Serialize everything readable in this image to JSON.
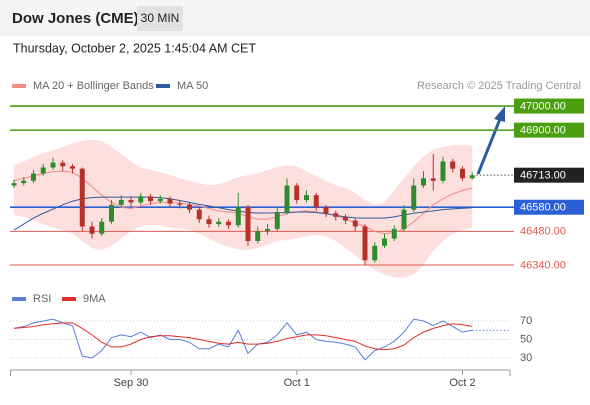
{
  "header": {
    "title": "Dow Jones (CME)",
    "timeframe": "30 MIN",
    "datetime": "Thursday, October 2, 2025 1:45:04 AM CET"
  },
  "chart_data": [
    {
      "type": "candlestick",
      "credit": "Research © 2025 Trading Central",
      "ylim": [
        46280,
        47050
      ],
      "up_color": "#2e8b2e",
      "down_color": "#b5322b",
      "band_color": "#fde0de",
      "candles": {
        "open": [
          46670,
          46680,
          46690,
          46720,
          46745,
          46765,
          46750,
          46740,
          46500,
          46470,
          46520,
          46590,
          46610,
          46600,
          46625,
          46605,
          46615,
          46595,
          46590,
          46570,
          46530,
          46510,
          46520,
          46505,
          46580,
          46440,
          46480,
          46490,
          46560,
          46670,
          46610,
          46630,
          46580,
          46555,
          46540,
          46525,
          46500,
          46360,
          46420,
          46450,
          46490,
          46570,
          46670,
          46700,
          46690,
          46770,
          46740,
          46700
        ],
        "high": [
          46695,
          46705,
          46735,
          46760,
          46785,
          46775,
          46760,
          46745,
          46520,
          46535,
          46610,
          46630,
          46625,
          46640,
          46635,
          46630,
          46625,
          46610,
          46600,
          46580,
          46545,
          46535,
          46530,
          46640,
          46590,
          46500,
          46510,
          46580,
          46700,
          46680,
          46650,
          46640,
          46590,
          46565,
          46550,
          46535,
          46510,
          46435,
          46470,
          46505,
          46590,
          46700,
          46730,
          46800,
          46790,
          46780,
          46750,
          46725
        ],
        "low": [
          46660,
          46670,
          46680,
          46710,
          46735,
          46730,
          46720,
          46480,
          46450,
          46460,
          46510,
          46580,
          46585,
          46590,
          46590,
          46595,
          46580,
          46575,
          46555,
          46515,
          46495,
          46500,
          46490,
          46495,
          46420,
          46430,
          46465,
          46480,
          46550,
          46595,
          46600,
          46565,
          46540,
          46525,
          46510,
          46480,
          46340,
          46350,
          46410,
          46440,
          46480,
          46560,
          46660,
          46650,
          46680,
          46725,
          46690,
          46695
        ],
        "close": [
          46680,
          46690,
          46720,
          46745,
          46765,
          46750,
          46740,
          46500,
          46470,
          46520,
          46590,
          46610,
          46600,
          46625,
          46605,
          46615,
          46595,
          46590,
          46570,
          46530,
          46510,
          46520,
          46505,
          46580,
          46440,
          46480,
          46490,
          46560,
          46670,
          46610,
          46630,
          46580,
          46555,
          46540,
          46525,
          46500,
          46360,
          46420,
          46450,
          46490,
          46570,
          46670,
          46700,
          46690,
          46770,
          46740,
          46700,
          46713
        ]
      },
      "series": [
        {
          "name": "MA 20 + Bollinger Bands",
          "color": "#f28b82",
          "values": [
            46690,
            46700,
            46710,
            46720,
            46728,
            46730,
            46725,
            46700,
            46665,
            46630,
            46600,
            46580,
            46575,
            46585,
            46595,
            46600,
            46600,
            46597,
            46592,
            46585,
            46575,
            46565,
            46560,
            46555,
            46540,
            46530,
            46530,
            46540,
            46555,
            46560,
            46565,
            46560,
            46555,
            46545,
            46530,
            46515,
            46500,
            46480,
            46470,
            46475,
            46490,
            46520,
            46555,
            46590,
            46615,
            46635,
            46650,
            46660
          ],
          "upper": [
            46755,
            46770,
            46790,
            46805,
            46815,
            46830,
            46845,
            46855,
            46860,
            46855,
            46830,
            46800,
            46770,
            46745,
            46735,
            46725,
            46715,
            46700,
            46690,
            46680,
            46672,
            46675,
            46690,
            46705,
            46714,
            46720,
            46735,
            46748,
            46755,
            46750,
            46730,
            46710,
            46690,
            46672,
            46660,
            46640,
            46610,
            46589,
            46600,
            46650,
            46700,
            46750,
            46790,
            46820,
            46830,
            46838,
            46840,
            46835
          ],
          "lower": [
            46548,
            46540,
            46525,
            46510,
            46495,
            46485,
            46470,
            46440,
            46410,
            46402,
            46420,
            46450,
            46480,
            46500,
            46505,
            46505,
            46495,
            46490,
            46485,
            46470,
            46450,
            46430,
            46415,
            46405,
            46402,
            46410,
            46425,
            46440,
            46444,
            46450,
            46460,
            46465,
            46460,
            46440,
            46410,
            46380,
            46345,
            46320,
            46300,
            46290,
            46286,
            46300,
            46340,
            46400,
            46440,
            46470,
            46485,
            46495
          ]
        },
        {
          "name": "MA 50",
          "color": "#2b5aa0",
          "values": [
            46485,
            46510,
            46535,
            46555,
            46572,
            46590,
            46605,
            46615,
            46620,
            46622,
            46622,
            46622,
            46622,
            46622,
            46622,
            46620,
            46615,
            46608,
            46600,
            46592,
            46585,
            46578,
            46570,
            46564,
            46558,
            46556,
            46556,
            46557,
            46558,
            46560,
            46560,
            46558,
            46553,
            46546,
            46540,
            46536,
            46535,
            46535,
            46535,
            46540,
            46548,
            46555,
            46560,
            46565,
            46570,
            46573,
            46576,
            46578
          ]
        }
      ],
      "levels": {
        "values": [
          47000,
          46900,
          46713,
          46580,
          46480,
          46340
        ],
        "value_labels": [
          "47000.00",
          "46900.00",
          "46713.00",
          "46580.00",
          "46480.00",
          "46340.00"
        ],
        "colors": [
          "#4a9e0f",
          "#4a9e0f",
          "#222222",
          "#2a5fd6",
          "#e05a50",
          "#e05a50"
        ],
        "kinds": [
          "box",
          "box",
          "box",
          "box",
          "text",
          "text"
        ]
      }
    },
    {
      "type": "line",
      "ylim": [
        20,
        80
      ],
      "yticks": [
        30,
        50,
        70
      ],
      "grid": true,
      "xticks": [
        {
          "value": 12,
          "label": "Sep 30"
        },
        {
          "value": 29,
          "label": "Oct 1"
        },
        {
          "value": 46,
          "label": "Oct 2"
        }
      ],
      "series": [
        {
          "name": "RSI",
          "color": "#5b7fd6",
          "values": [
            62,
            64,
            68,
            70,
            72,
            68,
            65,
            32,
            30,
            38,
            52,
            55,
            53,
            58,
            52,
            55,
            50,
            50,
            47,
            40,
            40,
            45,
            42,
            60,
            35,
            45,
            47,
            55,
            68,
            55,
            58,
            50,
            48,
            47,
            45,
            42,
            28,
            38,
            42,
            48,
            58,
            72,
            70,
            65,
            70,
            64,
            58,
            60
          ]
        },
        {
          "name": "9MA",
          "color": "#e0302a",
          "values": [
            62,
            63,
            64,
            66,
            67,
            68,
            68,
            62,
            55,
            47,
            42,
            42,
            45,
            50,
            53,
            54,
            54,
            53,
            52,
            50,
            48,
            46,
            45,
            47,
            45,
            45,
            46,
            48,
            51,
            53,
            55,
            55,
            54,
            52,
            50,
            48,
            43,
            40,
            39,
            40,
            44,
            52,
            58,
            62,
            65,
            67,
            66,
            64
          ]
        }
      ]
    }
  ]
}
